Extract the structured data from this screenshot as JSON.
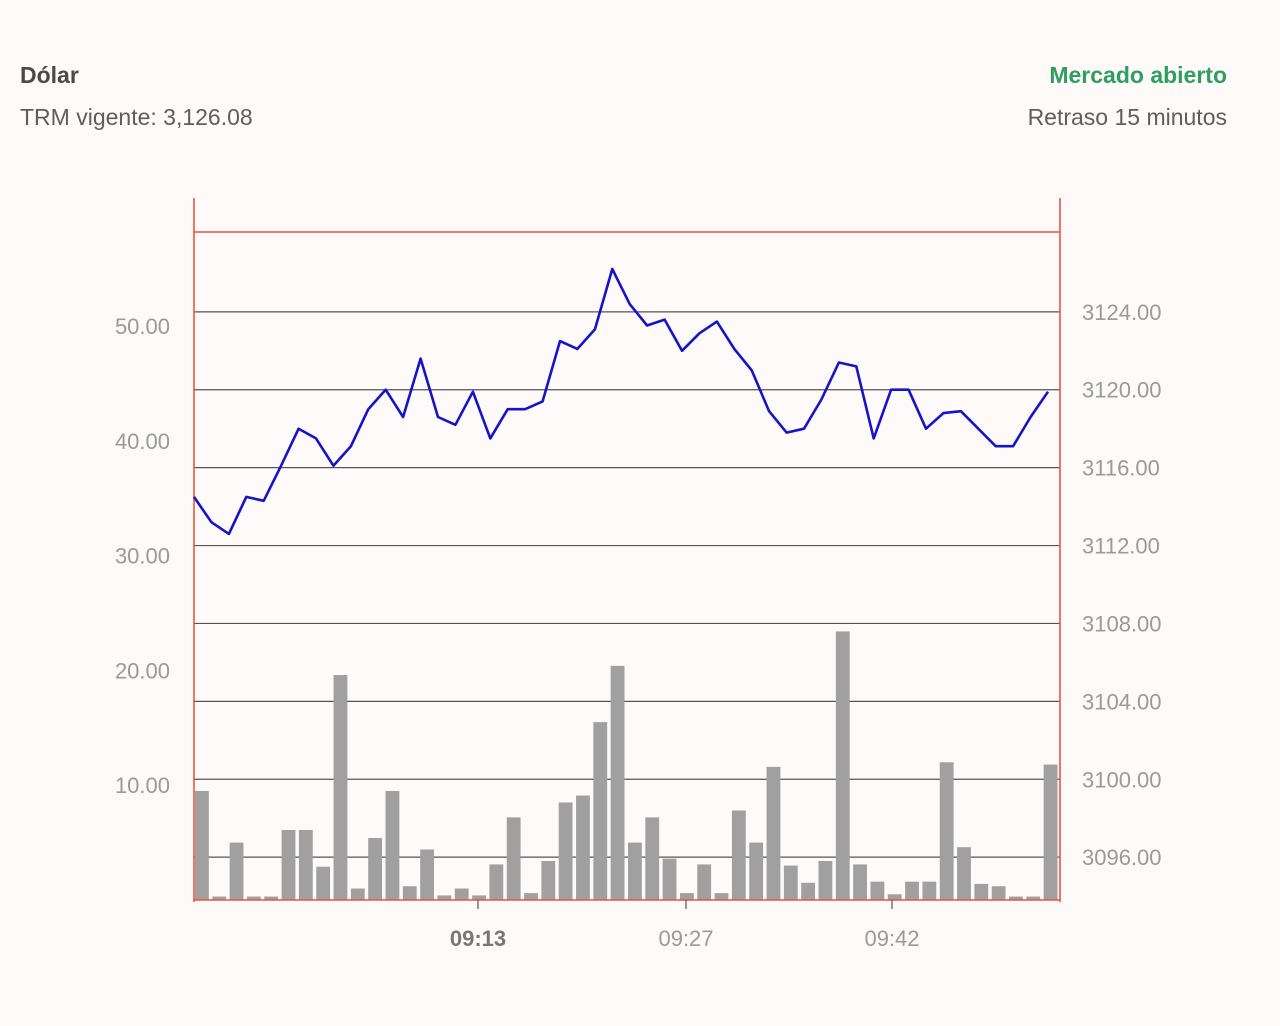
{
  "header": {
    "title": "Dólar",
    "subtitle": "TRM vigente: 3,126.08",
    "status": "Mercado abierto",
    "delay": "Retraso 15 minutos"
  },
  "colors": {
    "price_line": "#1414c8",
    "volume_bar": "#a0a0a0",
    "frame": "#e8553f",
    "grid": "#555555",
    "status_green": "#2f9e5e"
  },
  "chart_data": {
    "type": "line",
    "x_tick_labels": [
      "09:13",
      "09:27",
      "09:42"
    ],
    "x_tick_bold": [
      true,
      false,
      false
    ],
    "y_left": {
      "ticks": [
        10,
        20,
        30,
        40,
        50
      ],
      "tick_labels": [
        "10.00",
        "20.00",
        "30.00",
        "40.00",
        "50.00"
      ],
      "range": [
        0,
        58.2
      ]
    },
    "y_right": {
      "ticks": [
        3096,
        3100,
        3104,
        3108,
        3112,
        3116,
        3120,
        3124
      ],
      "tick_labels": [
        "3096.00",
        "3100.00",
        "3104.00",
        "3108.00",
        "3112.00",
        "3116.00",
        "3120.00",
        "3124.00"
      ],
      "range": [
        3093.8,
        3128.1
      ]
    },
    "grid": true,
    "series": [
      {
        "kind": "line",
        "axis": "right",
        "values": [
          3114.5,
          3113.2,
          3112.6,
          3114.5,
          3114.3,
          3116.1,
          3118.0,
          3117.5,
          3116.1,
          3117.1,
          3119.0,
          3120.0,
          3118.6,
          3121.6,
          3118.6,
          3118.2,
          3119.9,
          3117.5,
          3119.0,
          3119.0,
          3119.4,
          3122.5,
          3122.1,
          3123.1,
          3126.2,
          3124.4,
          3123.3,
          3123.6,
          3122.0,
          3122.9,
          3123.5,
          3122.1,
          3121.0,
          3118.9,
          3117.8,
          3118.0,
          3119.5,
          3121.4,
          3121.2,
          3117.5,
          3120.0,
          3120.0,
          3118.0,
          3118.8,
          3118.9,
          3118.0,
          3117.1,
          3117.1,
          3118.6,
          3119.9
        ]
      },
      {
        "kind": "bar",
        "axis": "left",
        "values": [
          9.5,
          0.3,
          5.0,
          0.3,
          0.3,
          6.1,
          6.1,
          2.9,
          19.6,
          1.0,
          5.4,
          9.5,
          1.2,
          4.4,
          0.4,
          1.0,
          0.4,
          3.1,
          7.2,
          0.6,
          3.4,
          8.5,
          9.1,
          15.5,
          20.4,
          5.0,
          7.2,
          3.6,
          0.6,
          3.1,
          0.6,
          7.8,
          5.0,
          11.6,
          3.0,
          1.5,
          3.4,
          23.4,
          3.1,
          1.6,
          0.5,
          1.6,
          1.6,
          12.0,
          4.6,
          1.4,
          1.2,
          0.3,
          0.3,
          11.8
        ]
      }
    ]
  }
}
